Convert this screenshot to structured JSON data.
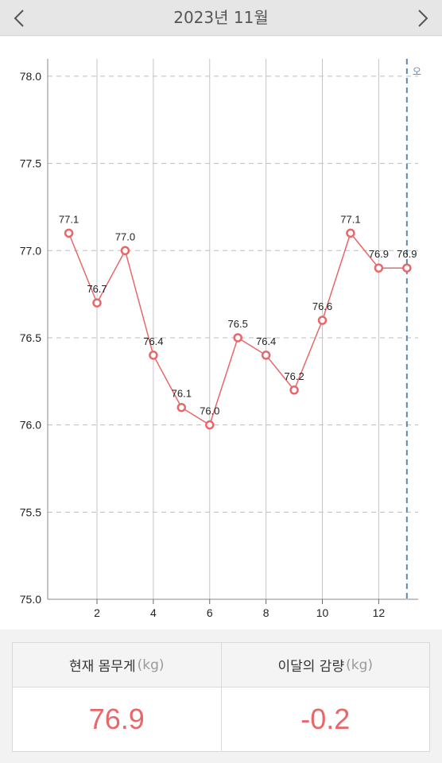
{
  "header": {
    "title": "2023년 11월",
    "prev_icon": "chevron-left-icon",
    "next_icon": "chevron-right-icon"
  },
  "chart_data": {
    "type": "line",
    "x": [
      1,
      2,
      3,
      4,
      5,
      6,
      7,
      8,
      9,
      10,
      11,
      12,
      13
    ],
    "values": [
      77.1,
      76.7,
      77.0,
      76.4,
      76.1,
      76.0,
      76.5,
      76.4,
      76.2,
      76.6,
      77.1,
      76.9,
      76.9
    ],
    "point_labels": [
      "77.1",
      "76.7",
      "77.0",
      "76.4",
      "76.1",
      "76.0",
      "76.5",
      "76.4",
      "76.2",
      "76.6",
      "77.1",
      "76.9",
      "76.9"
    ],
    "x_ticks": [
      "2",
      "4",
      "6",
      "8",
      "10",
      "12"
    ],
    "x_tick_values": [
      2,
      4,
      6,
      8,
      10,
      12
    ],
    "y_ticks": [
      "75.0",
      "75.5",
      "76.0",
      "76.5",
      "77.0",
      "77.5",
      "78.0"
    ],
    "y_tick_values": [
      75.0,
      75.5,
      76.0,
      76.5,
      77.0,
      77.5,
      78.0
    ],
    "xlim": [
      0.25,
      13.4
    ],
    "ylim": [
      75.0,
      78.1
    ],
    "grid": true,
    "today_marker": {
      "x": 13,
      "label": "오"
    },
    "colors": {
      "line": "#e8676a",
      "today_marker": "#5b86b8",
      "grid": "#c8c8c8"
    },
    "title": "",
    "xlabel": "",
    "ylabel": ""
  },
  "summary": {
    "current": {
      "label": "현재 몸무게",
      "unit": "(kg)",
      "value": "76.9"
    },
    "change": {
      "label": "이달의 감량",
      "unit": "(kg)",
      "value": "-0.2"
    }
  }
}
